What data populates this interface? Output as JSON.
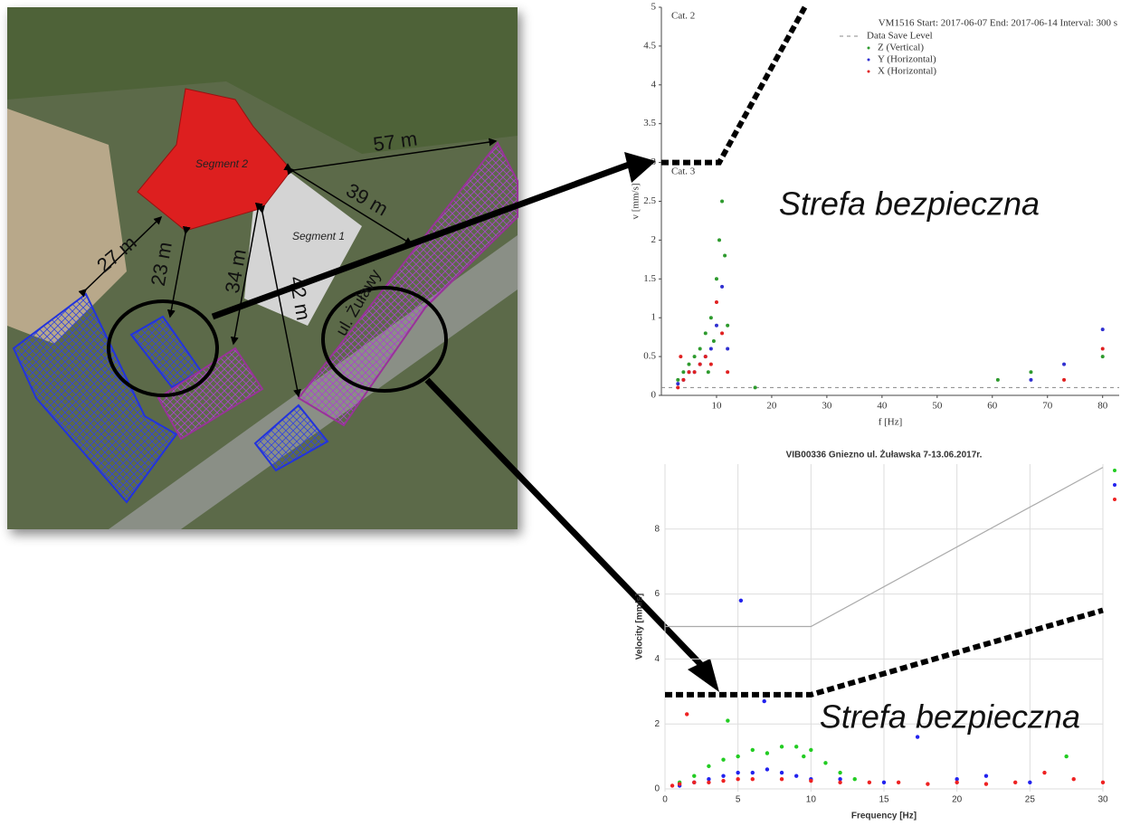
{
  "map": {
    "segments": [
      "Segment 2",
      "Segment 1"
    ],
    "distances": [
      "57 m",
      "39 m",
      "27 m",
      "23 m",
      "34 m",
      "42 m"
    ],
    "street": "ul. Żuławy"
  },
  "chart_data": [
    {
      "type": "scatter",
      "legend_title": "VM1516 Start:  2017-06-07 End:  2017-06-14 Interval:  300 s",
      "x_label": "f [Hz]",
      "y_label": "v [mm/s]",
      "annotations": [
        "Cat. 2",
        "Cat. 3",
        "Strefa bezpieczna"
      ],
      "xlim": [
        0,
        83
      ],
      "xticks": [
        10,
        20,
        30,
        40,
        50,
        60,
        70,
        80
      ],
      "ylim": [
        0,
        5
      ],
      "yticks": [
        0,
        0.5,
        1,
        1.5,
        2,
        2.5,
        3,
        3.5,
        4,
        4.5,
        5
      ],
      "grid": false,
      "save_level": {
        "name": "Data Save Level",
        "value": 0.1,
        "color": "#888888"
      },
      "limit_line": {
        "x": [
          0,
          10.5,
          26
        ],
        "y": [
          3,
          3,
          5
        ]
      },
      "series": [
        {
          "name": "Z (Vertical)",
          "color": "#2e9a2e",
          "x": [
            3,
            4,
            5,
            6,
            7,
            8,
            9,
            10,
            10.5,
            11,
            11.5,
            12,
            8.5,
            9.5,
            17,
            61,
            67,
            80
          ],
          "values": [
            0.2,
            0.3,
            0.4,
            0.5,
            0.6,
            0.8,
            1.0,
            1.5,
            2.0,
            2.5,
            1.8,
            0.9,
            0.3,
            0.7,
            0.1,
            0.2,
            0.3,
            0.5
          ]
        },
        {
          "name": "Y (Horizontal)",
          "color": "#3030d0",
          "x": [
            3,
            4,
            5,
            6,
            7,
            8,
            9,
            10,
            11,
            12,
            67,
            73,
            80
          ],
          "values": [
            0.15,
            0.2,
            0.3,
            0.3,
            0.4,
            0.5,
            0.6,
            0.9,
            1.4,
            0.6,
            0.2,
            0.4,
            0.85
          ]
        },
        {
          "name": "X (Horizontal)",
          "color": "#e02020",
          "x": [
            3,
            3.5,
            4,
            5,
            6,
            7,
            8,
            9,
            10,
            11,
            12,
            73,
            80
          ],
          "values": [
            0.1,
            0.5,
            0.2,
            0.3,
            0.3,
            0.4,
            0.5,
            0.4,
            1.2,
            0.8,
            0.3,
            0.2,
            0.6
          ]
        }
      ]
    },
    {
      "type": "scatter",
      "title": "VIB00336 Gniezno ul. Żuławska 7-13.06.2017r.",
      "x_label": "Frequency [Hz]",
      "y_label": "Velocity [mm/s]",
      "annotations": [
        "Strefa bezpieczna"
      ],
      "xlim": [
        0,
        30
      ],
      "xticks": [
        0,
        5,
        10,
        15,
        20,
        25,
        30
      ],
      "ylim": [
        0,
        10
      ],
      "yticks": [
        0,
        2,
        4,
        6,
        8
      ],
      "grid": true,
      "gray_line": {
        "x": [
          0,
          10,
          30
        ],
        "y": [
          5,
          5,
          9.9
        ]
      },
      "limit_line": {
        "x": [
          0,
          10,
          30
        ],
        "y": [
          2.9,
          2.9,
          5.5
        ]
      },
      "series": [
        {
          "color": "#22cc22",
          "x": [
            1,
            2,
            3,
            4,
            4.3,
            5,
            6,
            7,
            8,
            9,
            9.5,
            10,
            11,
            12,
            13,
            27.5
          ],
          "values": [
            0.2,
            0.4,
            0.7,
            0.9,
            2.1,
            1.0,
            1.2,
            1.1,
            1.3,
            1.3,
            1.0,
            1.2,
            0.8,
            0.5,
            0.3,
            1.0
          ]
        },
        {
          "color": "#2222ee",
          "x": [
            1,
            2,
            3,
            4,
            5,
            5.2,
            6,
            6.8,
            7,
            8,
            9,
            10,
            12,
            15,
            17.3,
            20,
            22,
            25
          ],
          "values": [
            0.1,
            0.2,
            0.3,
            0.4,
            0.5,
            5.8,
            0.5,
            2.7,
            0.6,
            0.5,
            0.4,
            0.3,
            0.3,
            0.2,
            1.6,
            0.3,
            0.4,
            0.2
          ]
        },
        {
          "color": "#ee2222",
          "x": [
            0.5,
            1,
            1.5,
            2,
            3,
            4,
            5,
            6,
            8,
            10,
            12,
            14,
            16,
            18,
            20,
            22,
            24,
            26,
            28,
            30
          ],
          "values": [
            0.1,
            0.15,
            2.3,
            0.2,
            0.2,
            0.25,
            0.3,
            0.3,
            0.3,
            0.25,
            0.2,
            0.2,
            0.2,
            0.15,
            0.2,
            0.15,
            0.2,
            0.5,
            0.3,
            0.2
          ]
        }
      ]
    }
  ]
}
